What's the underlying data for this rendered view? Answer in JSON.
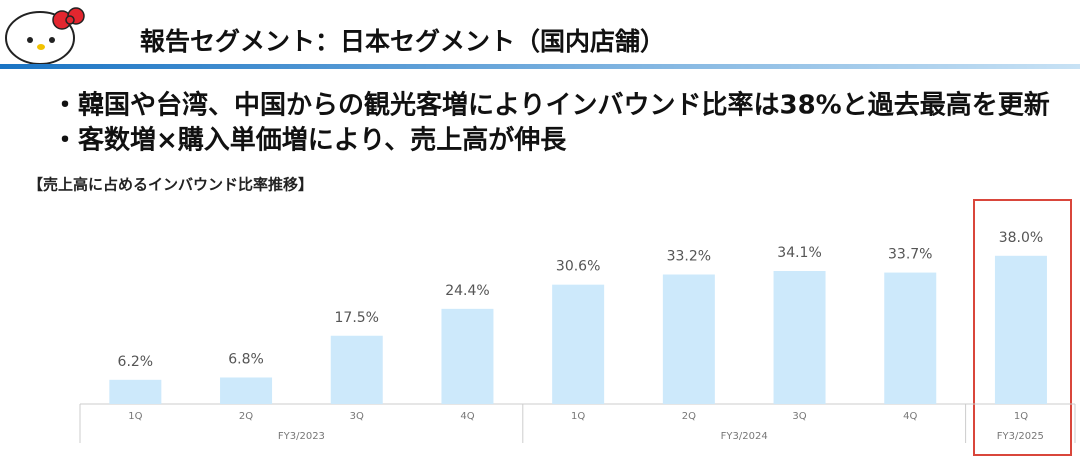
{
  "header": {
    "title": "報告セグメント：日本セグメント（国内店舗）"
  },
  "bullets": [
    "・韓国や台湾、中国からの観光客増によりインバウンド比率は38%と過去最高を更新",
    "・客数増×購入単価増により、売上高が伸長"
  ],
  "chart_data": {
    "type": "bar",
    "title": "【売上高に占めるインバウンド比率推移】",
    "color": "#cde9fb",
    "groups": [
      {
        "label": "FY3/2023",
        "categories": [
          "1Q",
          "2Q",
          "3Q",
          "4Q"
        ],
        "values": [
          6.2,
          6.8,
          17.5,
          24.4
        ],
        "value_labels": [
          "6.2%",
          "6.8%",
          "17.5%",
          "24.4%"
        ]
      },
      {
        "label": "FY3/2024",
        "categories": [
          "1Q",
          "2Q",
          "3Q",
          "4Q"
        ],
        "values": [
          30.6,
          33.2,
          34.1,
          33.7
        ],
        "value_labels": [
          "30.6%",
          "33.2%",
          "34.1%",
          "33.7%"
        ]
      },
      {
        "label": "FY3/2025",
        "categories": [
          "1Q"
        ],
        "values": [
          38.0
        ],
        "value_labels": [
          "38.0%"
        ]
      }
    ]
  }
}
